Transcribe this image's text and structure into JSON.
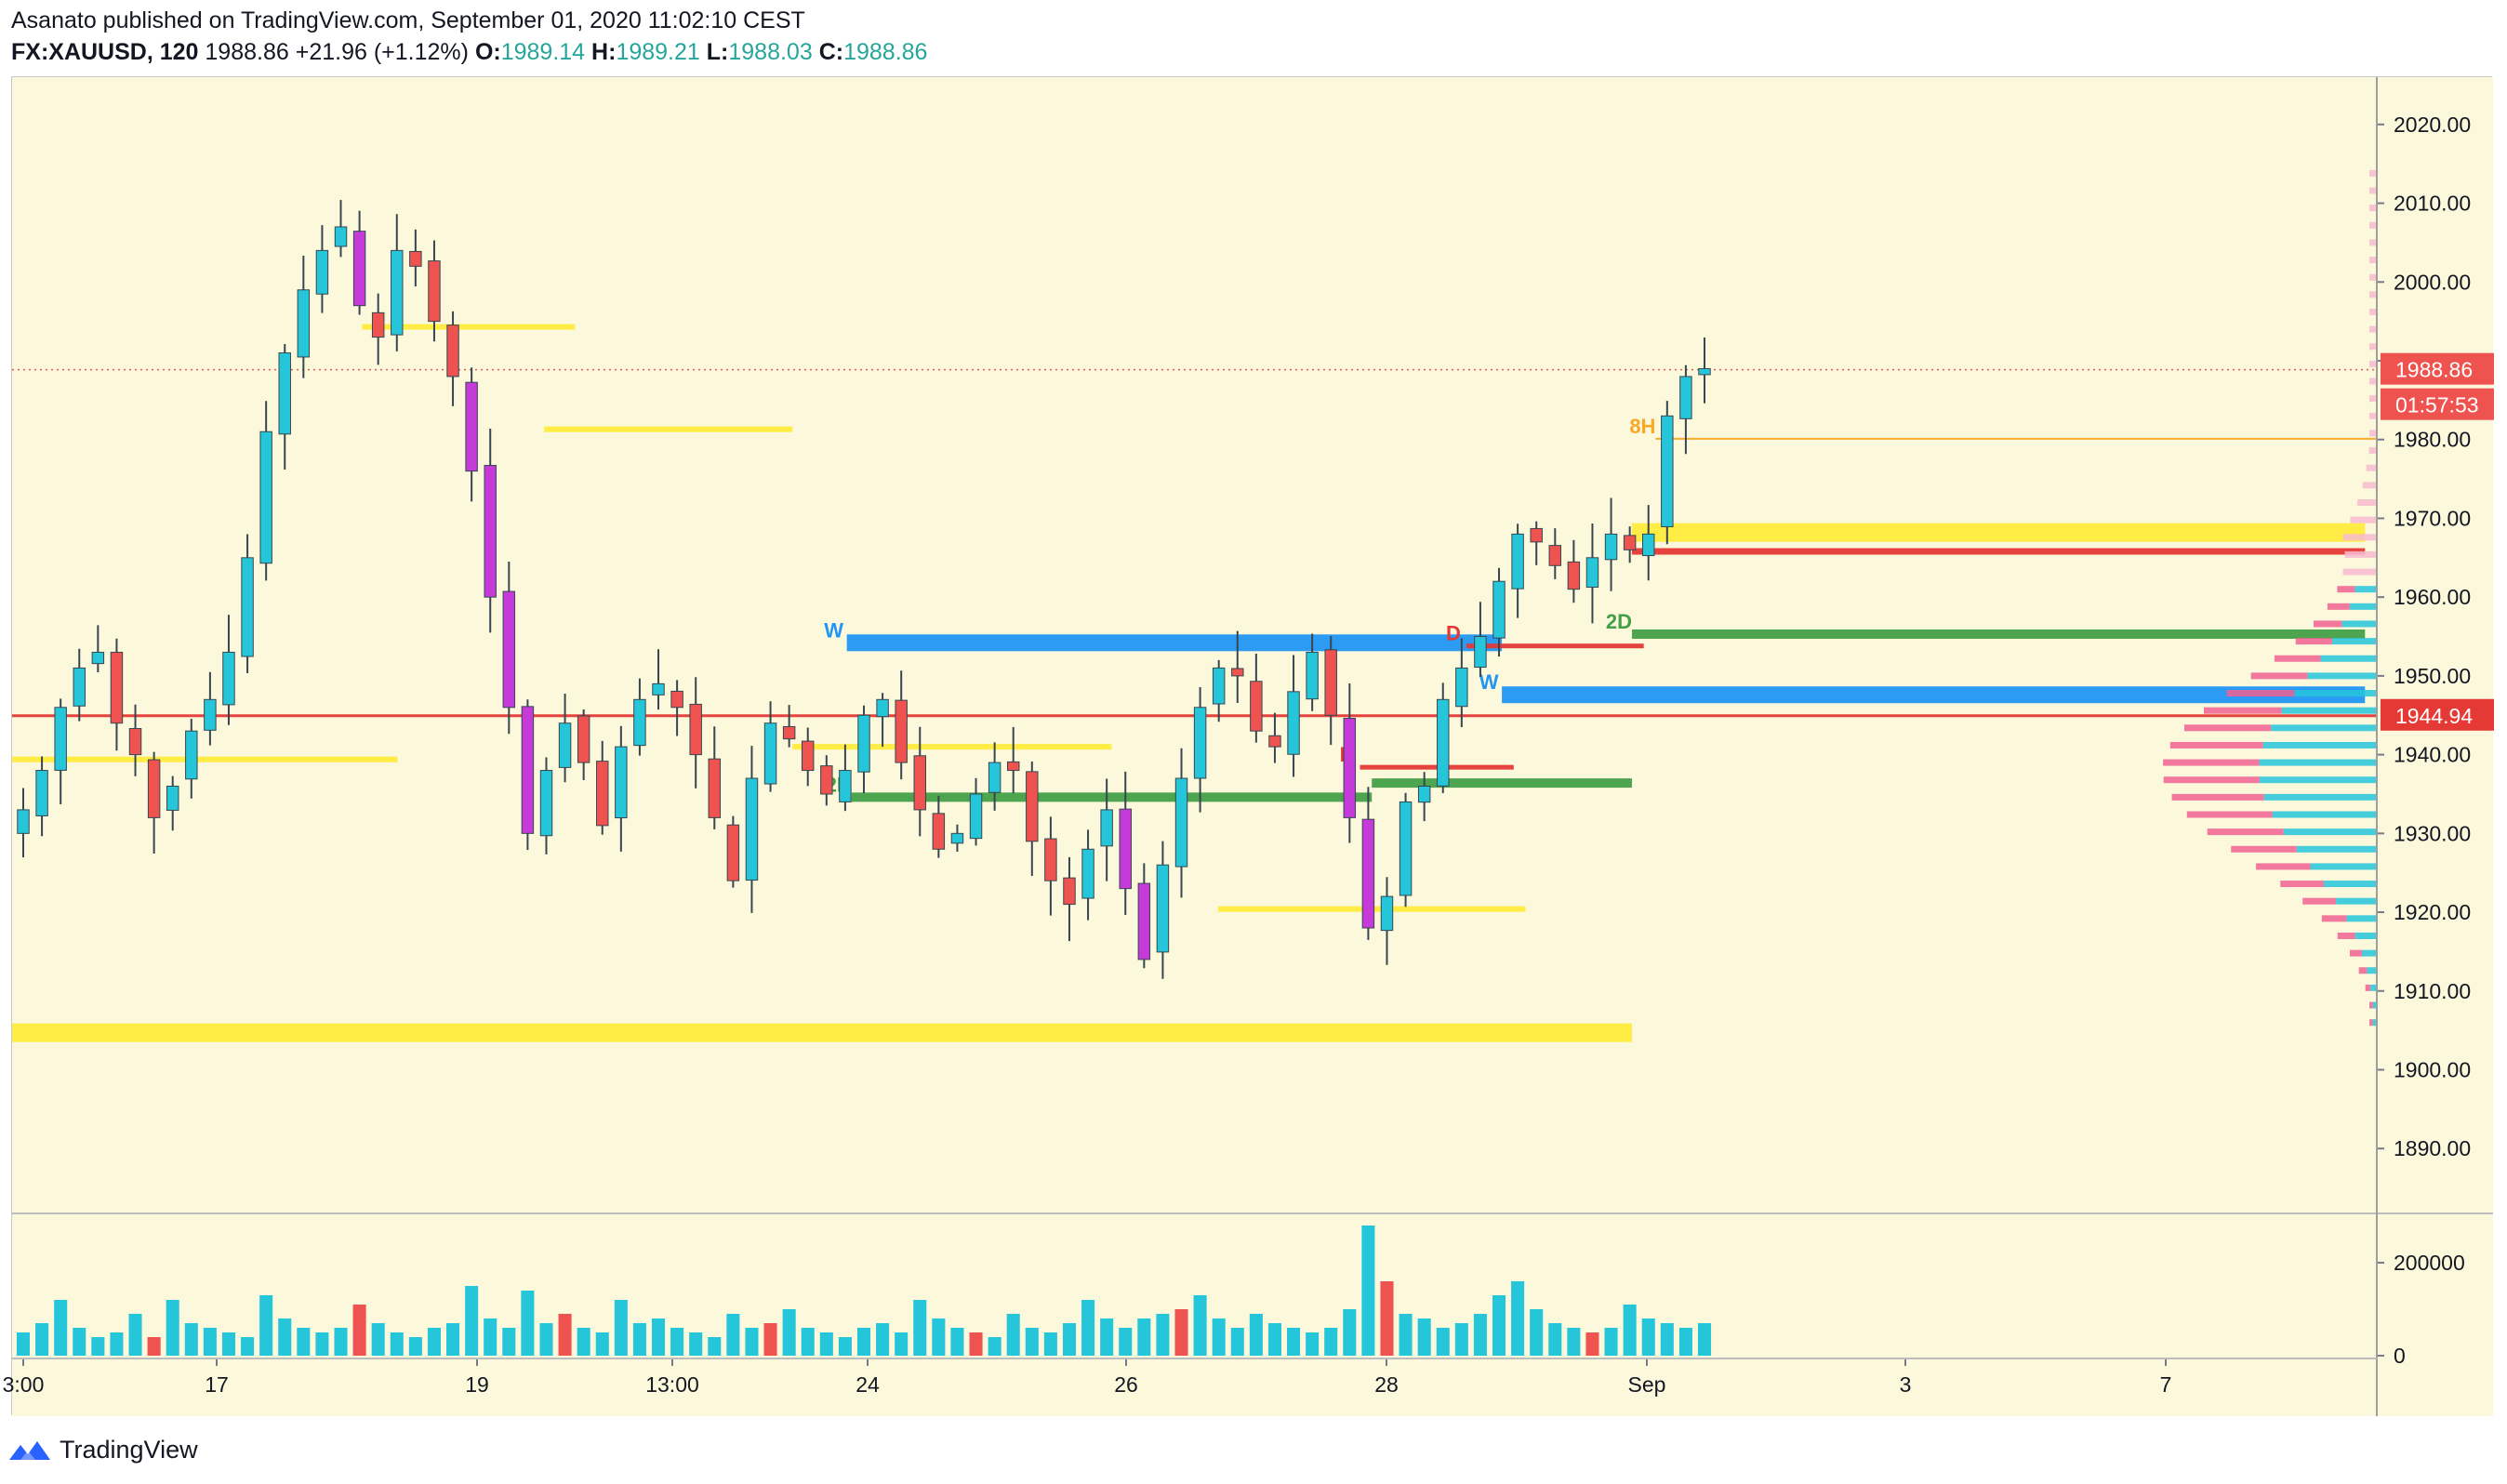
{
  "header": {
    "published_line": "Asanato published on TradingView.com, September 01, 2020 11:02:10 CEST",
    "symbol": "FX:XAUUSD, 120",
    "last": "1988.86",
    "change": "+21.96 (+1.12%)",
    "o_label": "O:",
    "o_value": "1989.14",
    "h_label": "H:",
    "h_value": "1989.21",
    "l_label": "L:",
    "l_value": "1988.03",
    "c_label": "C:",
    "c_value": "1988.86"
  },
  "footer": {
    "brand": "TradingView"
  },
  "colors": {
    "background": "#fbf8dc",
    "up": "#26c6da",
    "down": "#ef5350",
    "yellow_level": "#ffeb3b",
    "blue_level": "#2196f3",
    "green_level": "#43a047",
    "red_level": "#e53935",
    "magenta_candle": "#c53ad8"
  },
  "chart_data": {
    "type": "candlestick",
    "ylim": [
      1882,
      2026
    ],
    "price_ticks": [
      2020,
      2010,
      2000,
      1990,
      1980,
      1970,
      1960,
      1950,
      1940,
      1930,
      1920,
      1910,
      1900,
      1890
    ],
    "price_tick_labels": [
      "2020.00",
      "2010.00",
      "2000.00",
      "1990.00",
      "1980.00",
      "1970.00",
      "1960.00",
      "1950.00",
      "1940.00",
      "1930.00",
      "1920.00",
      "1910.00",
      "1900.00",
      "1890.00"
    ],
    "last_price": 1988.86,
    "last_price_label": "1988.86",
    "countdown_label": "01:57:53",
    "marked_price": 1944.94,
    "marked_price_label": "1944.94",
    "x_ticks": [
      "3:00",
      "17",
      "19",
      "13:00",
      "24",
      "26",
      "28",
      "Sep",
      "3",
      "7"
    ],
    "volume_ticks": [
      200000,
      0
    ],
    "volume_tick_labels": [
      "200000",
      "0"
    ],
    "volume_max": 300000,
    "close_path": [
      1933,
      1938,
      1946,
      1951,
      1953,
      1944,
      1940,
      1932,
      1936,
      1943,
      1947,
      1953,
      1965,
      1981,
      1991,
      1999,
      2004,
      2007,
      1997,
      1993,
      2004,
      2002,
      1995,
      1988,
      1976,
      1960,
      1946,
      1930,
      1938,
      1944,
      1939,
      1931,
      1941,
      1947,
      1949,
      1946,
      1940,
      1932,
      1924,
      1937,
      1944,
      1942,
      1938,
      1935,
      1938,
      1945,
      1947,
      1939,
      1933,
      1928,
      1930,
      1935,
      1939,
      1938,
      1929,
      1924,
      1921,
      1928,
      1933,
      1923,
      1914,
      1926,
      1937,
      1946,
      1951,
      1950,
      1943,
      1941,
      1948,
      1953,
      1945,
      1932,
      1918,
      1922,
      1934,
      1936,
      1947,
      1951,
      1955,
      1962,
      1968,
      1967,
      1964,
      1961,
      1965,
      1968,
      1966,
      1968,
      1983,
      1988,
      1989
    ],
    "volumes": [
      50000,
      70000,
      120000,
      60000,
      40000,
      50000,
      90000,
      40000,
      120000,
      70000,
      60000,
      50000,
      40000,
      130000,
      80000,
      60000,
      50000,
      60000,
      110000,
      70000,
      50000,
      40000,
      60000,
      70000,
      150000,
      80000,
      60000,
      140000,
      70000,
      90000,
      60000,
      50000,
      120000,
      70000,
      80000,
      60000,
      50000,
      40000,
      90000,
      60000,
      70000,
      100000,
      60000,
      50000,
      40000,
      60000,
      70000,
      50000,
      120000,
      80000,
      60000,
      50000,
      40000,
      90000,
      60000,
      50000,
      70000,
      120000,
      80000,
      60000,
      80000,
      90000,
      100000,
      130000,
      80000,
      60000,
      90000,
      70000,
      60000,
      50000,
      60000,
      100000,
      280000,
      160000,
      90000,
      80000,
      60000,
      70000,
      90000,
      130000,
      160000,
      100000,
      70000,
      60000,
      50000,
      60000,
      110000,
      80000,
      70000,
      60000,
      70000
    ],
    "levels": [
      {
        "price": 1954.2,
        "x0": 0.353,
        "x1": 0.63,
        "color": "#2196f3",
        "w": 18,
        "label": "W"
      },
      {
        "price": 1947.6,
        "x0": 0.63,
        "x1": 0.995,
        "color": "#2196f3",
        "w": 18,
        "label": "W"
      },
      {
        "price": 1944.94,
        "x0": 0.0,
        "x1": 1.0,
        "color": "#e53935",
        "w": 3,
        "label": ""
      },
      {
        "price": 1955.3,
        "x0": 0.685,
        "x1": 0.995,
        "color": "#43a047",
        "w": 10,
        "label": "2D"
      },
      {
        "price": 1936.4,
        "x0": 0.575,
        "x1": 0.685,
        "color": "#43a047",
        "w": 10,
        "label": ""
      },
      {
        "price": 1934.6,
        "x0": 0.355,
        "x1": 0.575,
        "color": "#43a047",
        "w": 10,
        "label": "2D"
      },
      {
        "price": 1968.2,
        "x0": 0.685,
        "x1": 0.995,
        "color": "#ffeb3b",
        "w": 20,
        "label": ""
      },
      {
        "price": 1965.8,
        "x0": 0.685,
        "x1": 0.995,
        "color": "#e53935",
        "w": 7,
        "label": ""
      },
      {
        "price": 1904.7,
        "x0": 0.0,
        "x1": 0.685,
        "color": "#ffeb3b",
        "w": 20,
        "label": ""
      },
      {
        "price": 1939.4,
        "x0": 0.0,
        "x1": 0.163,
        "color": "#ffeb3b",
        "w": 6,
        "label": ""
      },
      {
        "price": 1994.3,
        "x0": 0.148,
        "x1": 0.238,
        "color": "#ffeb3b",
        "w": 6,
        "label": ""
      },
      {
        "price": 1981.3,
        "x0": 0.225,
        "x1": 0.33,
        "color": "#ffeb3b",
        "w": 6,
        "label": ""
      },
      {
        "price": 1941.0,
        "x0": 0.33,
        "x1": 0.465,
        "color": "#ffeb3b",
        "w": 6,
        "label": ""
      },
      {
        "price": 1920.4,
        "x0": 0.51,
        "x1": 0.64,
        "color": "#ffeb3b",
        "w": 6,
        "label": ""
      },
      {
        "price": 1938.4,
        "x0": 0.57,
        "x1": 0.635,
        "color": "#e53935",
        "w": 5,
        "label": "D"
      },
      {
        "price": 1953.8,
        "x0": 0.615,
        "x1": 0.69,
        "color": "#e53935",
        "w": 5,
        "label": "D"
      },
      {
        "price": 1980.1,
        "x0": 0.695,
        "x1": 1.0,
        "color": "#f9a825",
        "w": 2,
        "label": "8H"
      }
    ]
  }
}
